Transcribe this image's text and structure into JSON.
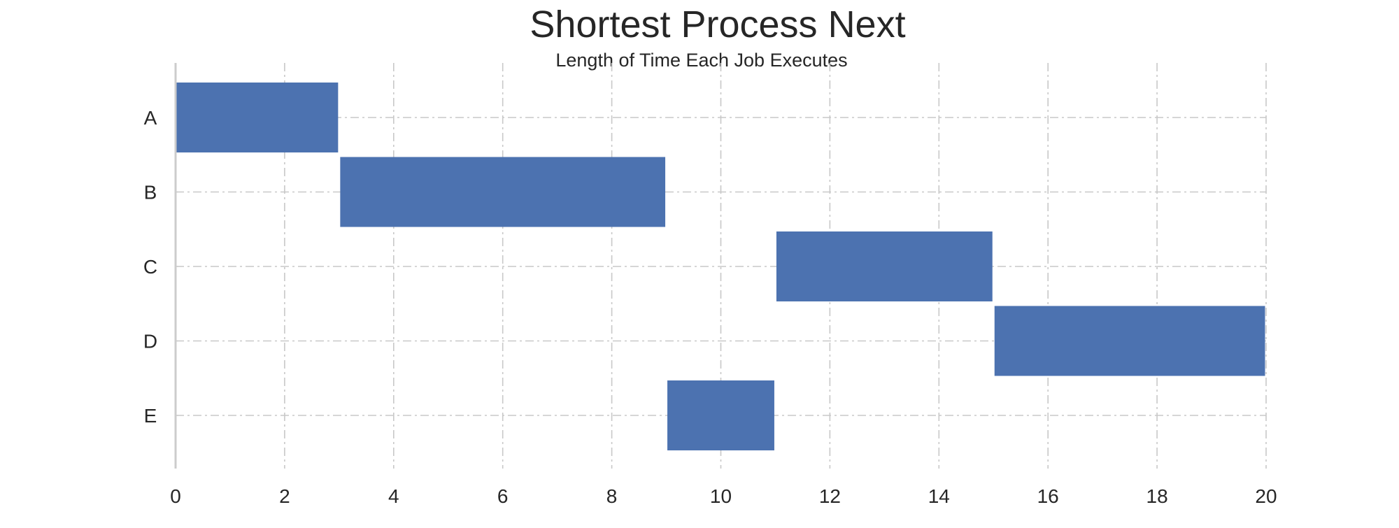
{
  "chart_data": {
    "type": "bar",
    "orientation": "horizontal",
    "title": "Shortest Process Next",
    "subtitle": "Length of Time Each Job Executes",
    "xlabel": "",
    "ylabel": "",
    "xlim": [
      0,
      20
    ],
    "x_ticks": [
      0,
      2,
      4,
      6,
      8,
      10,
      12,
      14,
      16,
      18,
      20
    ],
    "grid": true,
    "bar_color": "#4c72b0",
    "grid_color": "#c8c8c8",
    "jobs": [
      {
        "name": "A",
        "start": 0,
        "end": 3
      },
      {
        "name": "B",
        "start": 3,
        "end": 9
      },
      {
        "name": "C",
        "start": 11,
        "end": 15
      },
      {
        "name": "D",
        "start": 15,
        "end": 20
      },
      {
        "name": "E",
        "start": 9,
        "end": 11
      }
    ]
  }
}
